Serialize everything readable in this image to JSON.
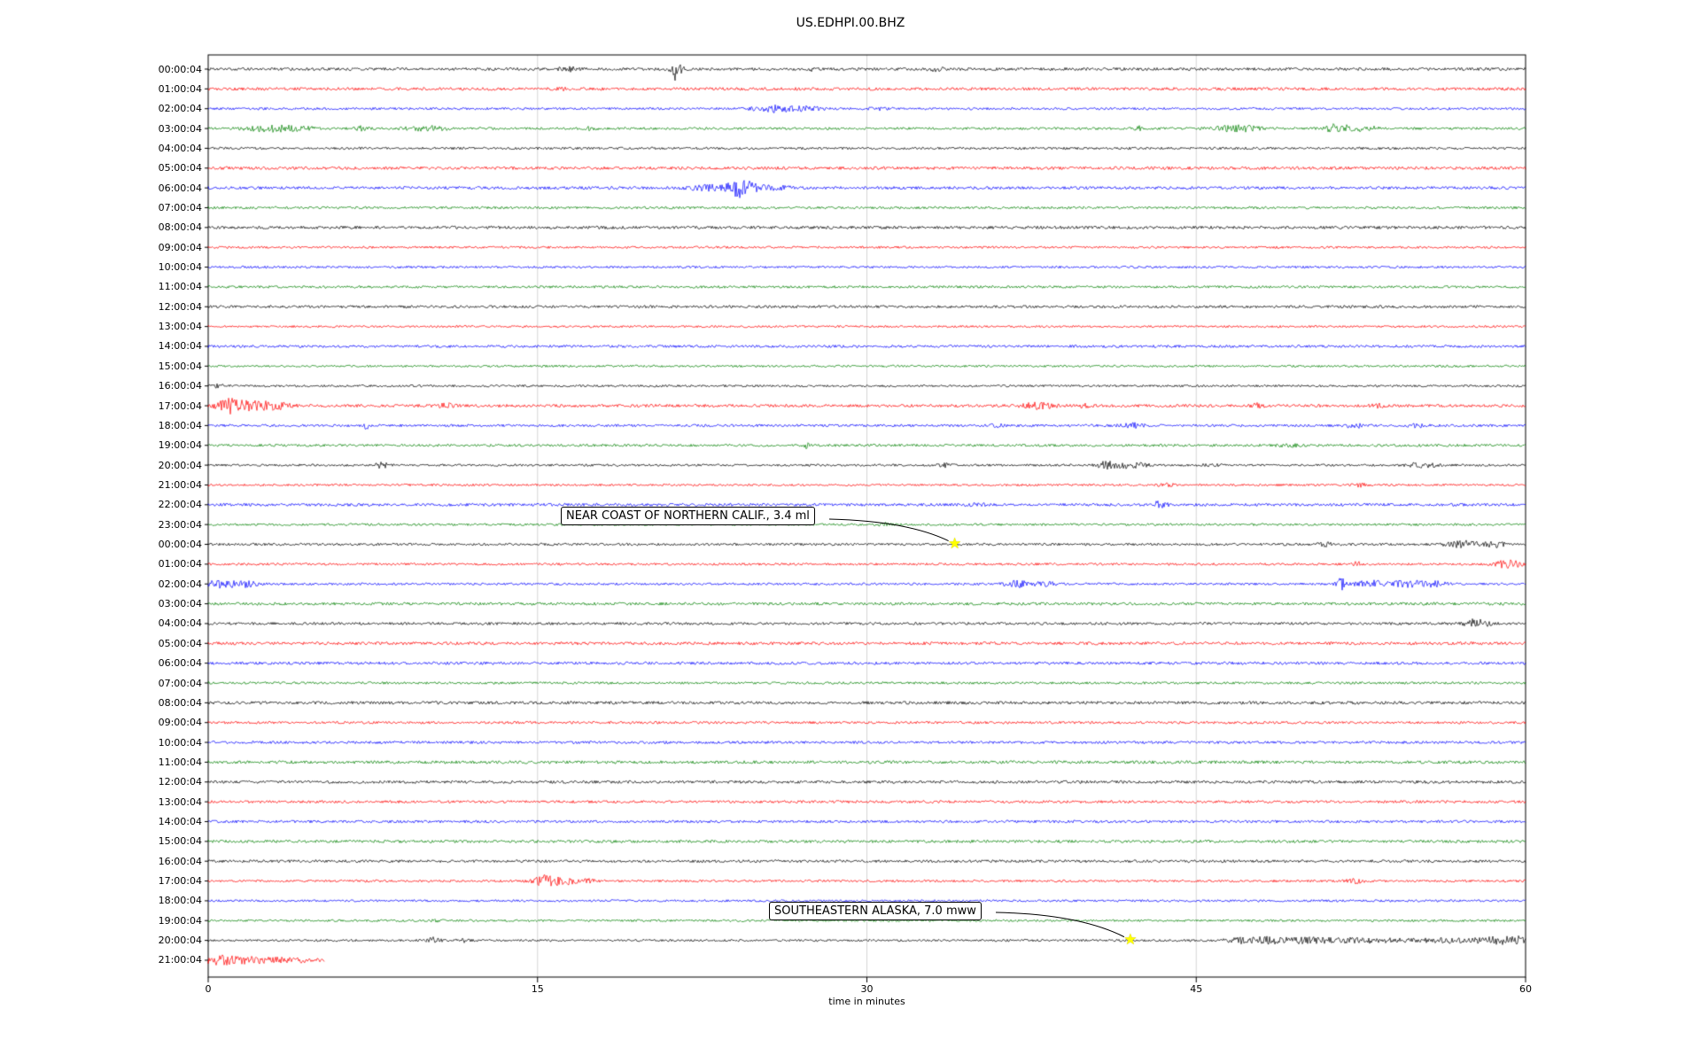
{
  "title": "US.EDHPI.00.BHZ",
  "chart_data": {
    "type": "line",
    "subtype": "seismic-helicorder",
    "title": "US.EDHPI.00.BHZ",
    "xlabel": "time in minutes",
    "xlim": [
      0,
      60
    ],
    "x_ticks": [
      "0",
      "15",
      "30",
      "45",
      "60"
    ],
    "x_tick_values": [
      0,
      15,
      30,
      45,
      60
    ],
    "grid": "vertical-at-15-30-45",
    "legend": "none",
    "trace_color_cycle": [
      "#000000",
      "#ff0000",
      "#0000ff",
      "#008000"
    ],
    "events_format": "[minute, relative_amplitude, width_minutes]",
    "rows": [
      {
        "label": "00:00:04",
        "color": "#000000",
        "events": [
          [
            16.4,
            1.5,
            0.4
          ],
          [
            21.3,
            8.5,
            0.25
          ],
          [
            27.5,
            1.0,
            0.3
          ],
          [
            33.2,
            1.5,
            0.3
          ]
        ]
      },
      {
        "label": "01:00:04",
        "color": "#ff0000",
        "events": [
          [
            16.2,
            1.2,
            0.3
          ]
        ]
      },
      {
        "label": "02:00:04",
        "color": "#0000ff",
        "events": [
          [
            25.7,
            2.5,
            0.9
          ],
          [
            27.2,
            1.5,
            0.7
          ],
          [
            30.5,
            0.8,
            0.5
          ]
        ]
      },
      {
        "label": "03:00:04",
        "color": "#008000",
        "events": [
          [
            2.8,
            2.2,
            1.2
          ],
          [
            4.2,
            1.2,
            0.8
          ],
          [
            6.9,
            1.5,
            0.3
          ],
          [
            9.9,
            2.0,
            0.9
          ],
          [
            17.4,
            1.2,
            0.3
          ],
          [
            42.3,
            3.5,
            0.15
          ],
          [
            46.8,
            2.5,
            1.0
          ],
          [
            51.4,
            3.5,
            0.5
          ],
          [
            52.6,
            1.8,
            0.7
          ]
        ]
      },
      {
        "label": "04:00:04",
        "color": "#000000",
        "events": []
      },
      {
        "label": "05:00:04",
        "color": "#ff0000",
        "events": []
      },
      {
        "label": "06:00:04",
        "color": "#0000ff",
        "events": [
          [
            22.7,
            2.0,
            0.8
          ],
          [
            24.2,
            6.5,
            0.5
          ],
          [
            25.2,
            2.2,
            1.2
          ]
        ]
      },
      {
        "label": "07:00:04",
        "color": "#008000",
        "events": []
      },
      {
        "label": "08:00:04",
        "color": "#000000",
        "events": []
      },
      {
        "label": "09:00:04",
        "color": "#ff0000",
        "events": []
      },
      {
        "label": "10:00:04",
        "color": "#0000ff",
        "events": []
      },
      {
        "label": "11:00:04",
        "color": "#008000",
        "events": []
      },
      {
        "label": "12:00:04",
        "color": "#000000",
        "events": []
      },
      {
        "label": "13:00:04",
        "color": "#ff0000",
        "events": []
      },
      {
        "label": "14:00:04",
        "color": "#0000ff",
        "events": []
      },
      {
        "label": "15:00:04",
        "color": "#008000",
        "events": []
      },
      {
        "label": "16:00:04",
        "color": "#000000",
        "events": [
          [
            0.5,
            1.0,
            0.5
          ]
        ]
      },
      {
        "label": "17:00:04",
        "color": "#ff0000",
        "events": [
          [
            0.9,
            4.5,
            0.6
          ],
          [
            1.9,
            3.0,
            1.0
          ],
          [
            3.1,
            1.8,
            0.7
          ],
          [
            10.9,
            1.8,
            0.35
          ],
          [
            37.8,
            2.2,
            0.7
          ],
          [
            40.0,
            1.2,
            0.4
          ],
          [
            47.8,
            1.4,
            0.3
          ],
          [
            53.2,
            1.2,
            0.4
          ]
        ]
      },
      {
        "label": "18:00:04",
        "color": "#0000ff",
        "events": [
          [
            7.2,
            2.2,
            0.15
          ],
          [
            36.0,
            1.0,
            0.4
          ],
          [
            42.1,
            1.8,
            0.5
          ],
          [
            52.3,
            1.5,
            0.5
          ],
          [
            55.0,
            1.2,
            0.4
          ]
        ]
      },
      {
        "label": "19:00:04",
        "color": "#008000",
        "events": [
          [
            27.3,
            3.0,
            0.12
          ],
          [
            49.2,
            1.3,
            0.5
          ]
        ]
      },
      {
        "label": "20:00:04",
        "color": "#000000",
        "events": [
          [
            7.9,
            2.5,
            0.25
          ],
          [
            33.6,
            1.4,
            0.3
          ],
          [
            40.9,
            3.0,
            0.4
          ],
          [
            41.9,
            2.2,
            0.8
          ],
          [
            45.5,
            1.2,
            0.5
          ],
          [
            55.3,
            1.8,
            0.7
          ]
        ]
      },
      {
        "label": "21:00:04",
        "color": "#ff0000",
        "events": [
          [
            43.6,
            1.3,
            0.4
          ],
          [
            52.4,
            1.5,
            0.3
          ]
        ]
      },
      {
        "label": "22:00:04",
        "color": "#0000ff",
        "events": [
          [
            35.0,
            1.0,
            0.4
          ],
          [
            43.3,
            2.2,
            0.35
          ]
        ]
      },
      {
        "label": "23:00:04",
        "color": "#008000",
        "events": [
          [
            30.8,
            1.0,
            0.3
          ]
        ]
      },
      {
        "label": "00:00:04",
        "color": "#000000",
        "events": [
          [
            50.9,
            1.4,
            0.4
          ],
          [
            57.2,
            2.5,
            0.8
          ],
          [
            58.6,
            1.8,
            0.5
          ]
        ]
      },
      {
        "label": "01:00:04",
        "color": "#ff0000",
        "events": [
          [
            52.3,
            3.2,
            0.15
          ],
          [
            59.2,
            3.5,
            0.5
          ]
        ]
      },
      {
        "label": "02:00:04",
        "color": "#0000ff",
        "events": [
          [
            0.6,
            2.8,
            0.7
          ],
          [
            1.7,
            2.0,
            0.6
          ],
          [
            36.9,
            2.5,
            0.6
          ],
          [
            38.2,
            1.4,
            0.5
          ],
          [
            51.6,
            4.5,
            0.2
          ],
          [
            52.9,
            2.5,
            0.7
          ],
          [
            54.6,
            2.5,
            0.8
          ],
          [
            55.8,
            1.8,
            0.6
          ]
        ]
      },
      {
        "label": "03:00:04",
        "color": "#008000",
        "events": []
      },
      {
        "label": "04:00:04",
        "color": "#000000",
        "events": [
          [
            57.8,
            3.5,
            0.5
          ]
        ]
      },
      {
        "label": "05:00:04",
        "color": "#ff0000",
        "events": []
      },
      {
        "label": "06:00:04",
        "color": "#0000ff",
        "events": []
      },
      {
        "label": "07:00:04",
        "color": "#008000",
        "events": []
      },
      {
        "label": "08:00:04",
        "color": "#000000",
        "events": []
      },
      {
        "label": "09:00:04",
        "color": "#ff0000",
        "events": []
      },
      {
        "label": "10:00:04",
        "color": "#0000ff",
        "events": []
      },
      {
        "label": "11:00:04",
        "color": "#008000",
        "events": []
      },
      {
        "label": "12:00:04",
        "color": "#000000",
        "events": []
      },
      {
        "label": "13:00:04",
        "color": "#ff0000",
        "events": []
      },
      {
        "label": "14:00:04",
        "color": "#0000ff",
        "events": []
      },
      {
        "label": "15:00:04",
        "color": "#008000",
        "events": []
      },
      {
        "label": "16:00:04",
        "color": "#000000",
        "events": []
      },
      {
        "label": "17:00:04",
        "color": "#ff0000",
        "events": [
          [
            15.3,
            3.8,
            0.5
          ],
          [
            16.2,
            2.5,
            0.6
          ],
          [
            17.4,
            1.4,
            0.3
          ],
          [
            52.2,
            1.8,
            0.35
          ]
        ]
      },
      {
        "label": "18:00:04",
        "color": "#0000ff",
        "events": []
      },
      {
        "label": "19:00:04",
        "color": "#008000",
        "events": [
          [
            10.6,
            1.1,
            0.3
          ]
        ]
      },
      {
        "label": "20:00:04",
        "color": "#000000",
        "events": [
          [
            10.3,
            2.2,
            0.3
          ],
          [
            11.6,
            1.4,
            0.3
          ],
          [
            47.5,
            2.2,
            1.0
          ],
          [
            49.5,
            1.8,
            2.0
          ],
          [
            53.0,
            1.5,
            2.5
          ],
          [
            57.0,
            1.6,
            1.5
          ],
          [
            58.8,
            2.2,
            0.8
          ],
          [
            59.6,
            2.5,
            0.4
          ]
        ]
      },
      {
        "label": "21:00:04",
        "color": "#ff0000",
        "events": [
          [
            0.4,
            3.0,
            0.5
          ],
          [
            1.3,
            2.2,
            0.8
          ],
          [
            2.6,
            1.5,
            1.0
          ],
          [
            4.0,
            1.2,
            0.8
          ]
        ],
        "partial_end_minute": 5.3
      }
    ],
    "annotations": [
      {
        "text": "NEAR COAST OF NORTHERN CALIF., 3.4 ml",
        "row_index": 24,
        "row_label": "00:00:04",
        "x_minutes": 34,
        "marker": "yellow-star"
      },
      {
        "text": "SOUTHEASTERN ALASKA, 7.0 mww",
        "row_index": 44,
        "row_label": "20:00:04",
        "x_minutes": 42,
        "marker": "yellow-star"
      }
    ]
  }
}
